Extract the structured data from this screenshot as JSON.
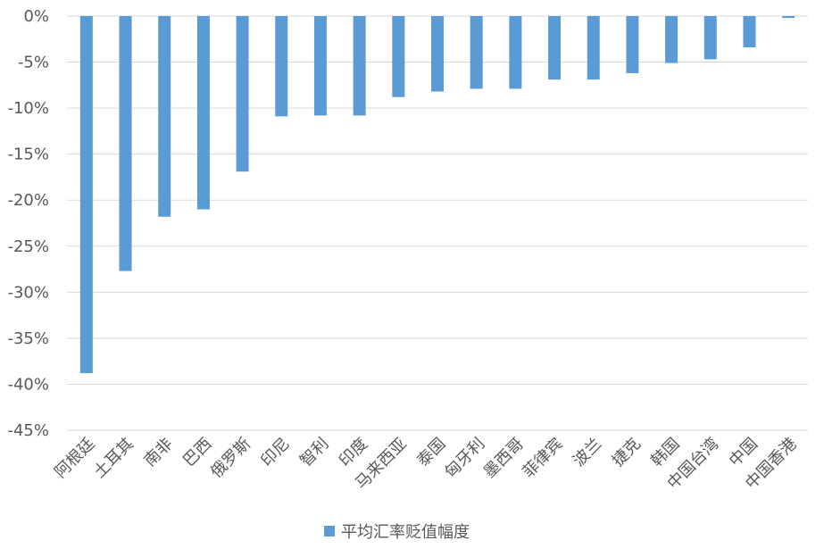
{
  "chart_data": {
    "type": "bar",
    "categories": [
      "阿根廷",
      "土耳其",
      "南非",
      "巴西",
      "俄罗斯",
      "印尼",
      "智利",
      "印度",
      "马来西亚",
      "泰国",
      "匈牙利",
      "墨西哥",
      "菲律宾",
      "波兰",
      "捷克",
      "韩国",
      "中国台湾",
      "中国",
      "中国香港"
    ],
    "series": [
      {
        "name": "平均汇率贬值幅度",
        "values": [
          -38.8,
          -27.7,
          -21.8,
          -21.0,
          -16.9,
          -10.9,
          -10.8,
          -10.8,
          -8.8,
          -8.2,
          -7.9,
          -7.9,
          -6.9,
          -6.9,
          -6.2,
          -5.1,
          -4.7,
          -3.4,
          -0.2
        ],
        "color": "#5B9BD5"
      }
    ],
    "y_ticks": [
      "0%",
      "-5%",
      "-10%",
      "-15%",
      "-20%",
      "-25%",
      "-30%",
      "-35%",
      "-40%",
      "-45%"
    ],
    "ylim": [
      -45,
      0
    ],
    "grid": true,
    "legend_position": "bottom"
  }
}
